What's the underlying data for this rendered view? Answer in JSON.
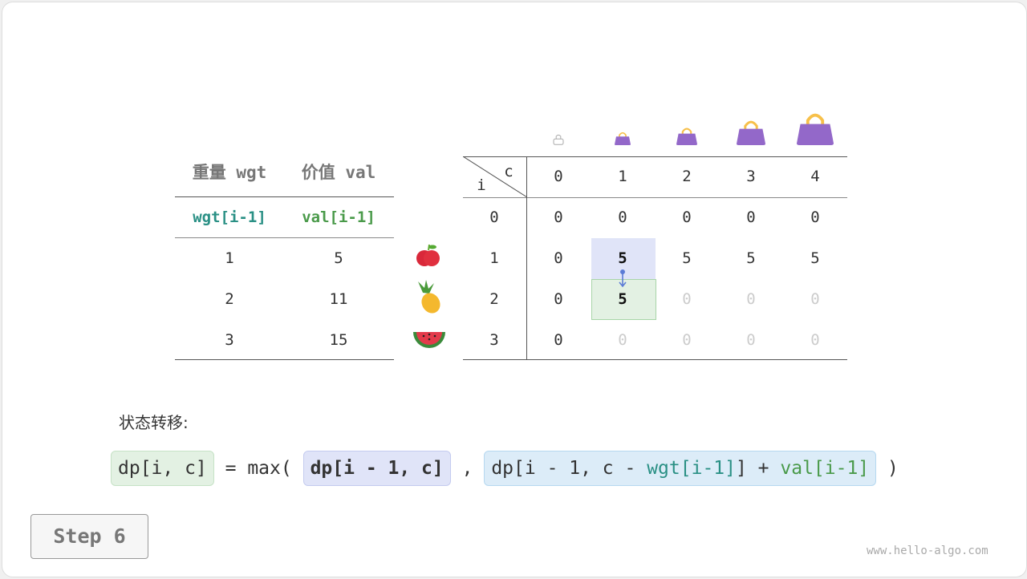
{
  "items_table": {
    "headers": [
      "重量 wgt",
      "价值 val"
    ],
    "subheaders": [
      "wgt[i-1]",
      "val[i-1]"
    ],
    "rows": [
      [
        "1",
        "5"
      ],
      [
        "2",
        "11"
      ],
      [
        "3",
        "15"
      ]
    ],
    "item_icons": [
      "apple-icon",
      "pineapple-icon",
      "watermelon-icon"
    ]
  },
  "dp_table": {
    "corner_col": "c",
    "corner_row": "i",
    "col_headers": [
      "0",
      "1",
      "2",
      "3",
      "4"
    ],
    "bag_icons": [
      "empty-bag-icon",
      "bag-icon",
      "bag-icon",
      "bag-icon",
      "bag-icon"
    ],
    "row_headers": [
      "0",
      "1",
      "2",
      "3"
    ],
    "cells": [
      [
        "0",
        "0",
        "0",
        "0",
        "0"
      ],
      [
        "0",
        "5",
        "5",
        "5",
        "5"
      ],
      [
        "0",
        "5",
        "0",
        "0",
        "0"
      ],
      [
        "0",
        "0",
        "0",
        "0",
        "0"
      ]
    ],
    "filled": [
      [
        true,
        true,
        true,
        true,
        true
      ],
      [
        true,
        true,
        true,
        true,
        true
      ],
      [
        true,
        true,
        false,
        false,
        false
      ],
      [
        true,
        false,
        false,
        false,
        false
      ]
    ],
    "highlight_source": [
      1,
      1
    ],
    "highlight_target": [
      2,
      1
    ]
  },
  "transition_label": "状态转移:",
  "formula": {
    "lhs": "dp[i, c]",
    "eq": " = max(",
    "opt1": "dp[i - 1, c]",
    "comma": ",",
    "opt2_a": "dp[i - 1, c - ",
    "opt2_wgt": "wgt[i-1]",
    "opt2_b": "] + ",
    "opt2_val": "val[i-1]",
    "close": ")"
  },
  "step_label": "Step 6",
  "watermark": "www.hello-algo.com",
  "colors": {
    "wgt": "#2a9085",
    "val": "#4a9a4a",
    "source_cell": "#e0e4f8",
    "target_cell": "#e3f1e3",
    "bag": "#9368c9",
    "handle": "#f7c04a"
  }
}
